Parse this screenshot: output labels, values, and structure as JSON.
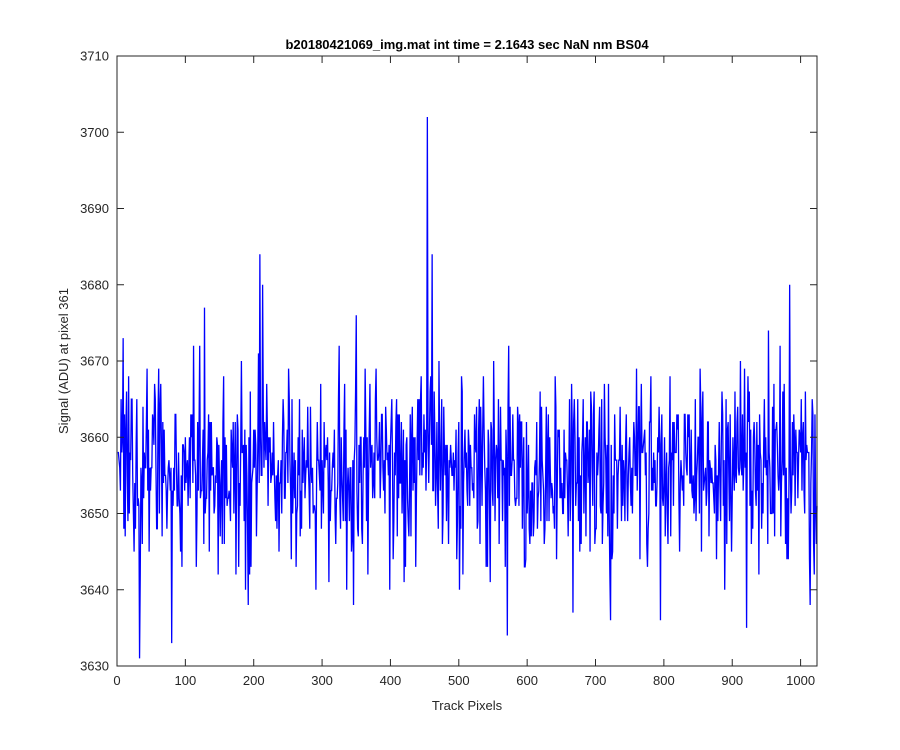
{
  "chart_data": {
    "type": "line",
    "title": "b20180421069_img.mat int time = 2.1643 sec  NaN nm BS04",
    "xlabel": "Track Pixels",
    "ylabel": "Signal (ADU) at pixel 361",
    "xlim": [
      0,
      1024
    ],
    "ylim": [
      3630,
      3710
    ],
    "xticks": [
      "0",
      "100",
      "200",
      "300",
      "400",
      "500",
      "600",
      "700",
      "800",
      "900",
      "1000"
    ],
    "yticks": [
      "3630",
      "3640",
      "3650",
      "3660",
      "3670",
      "3680",
      "3690",
      "3700",
      "3710"
    ],
    "grid": false,
    "line_color": "#0000ff",
    "n_points": 1024,
    "mean": 3656,
    "noise_sd": 6.5,
    "seed": 20180421,
    "anchor_points": [
      {
        "x": 8,
        "y": 3673
      },
      {
        "x": 32,
        "y": 3631
      },
      {
        "x": 79,
        "y": 3633
      },
      {
        "x": 127,
        "y": 3677
      },
      {
        "x": 208,
        "y": 3684
      },
      {
        "x": 212,
        "y": 3680
      },
      {
        "x": 349,
        "y": 3676
      },
      {
        "x": 453,
        "y": 3702
      },
      {
        "x": 460,
        "y": 3684
      },
      {
        "x": 570,
        "y": 3634
      },
      {
        "x": 920,
        "y": 3635
      },
      {
        "x": 983,
        "y": 3680
      },
      {
        "x": 1013,
        "y": 3638
      }
    ]
  }
}
